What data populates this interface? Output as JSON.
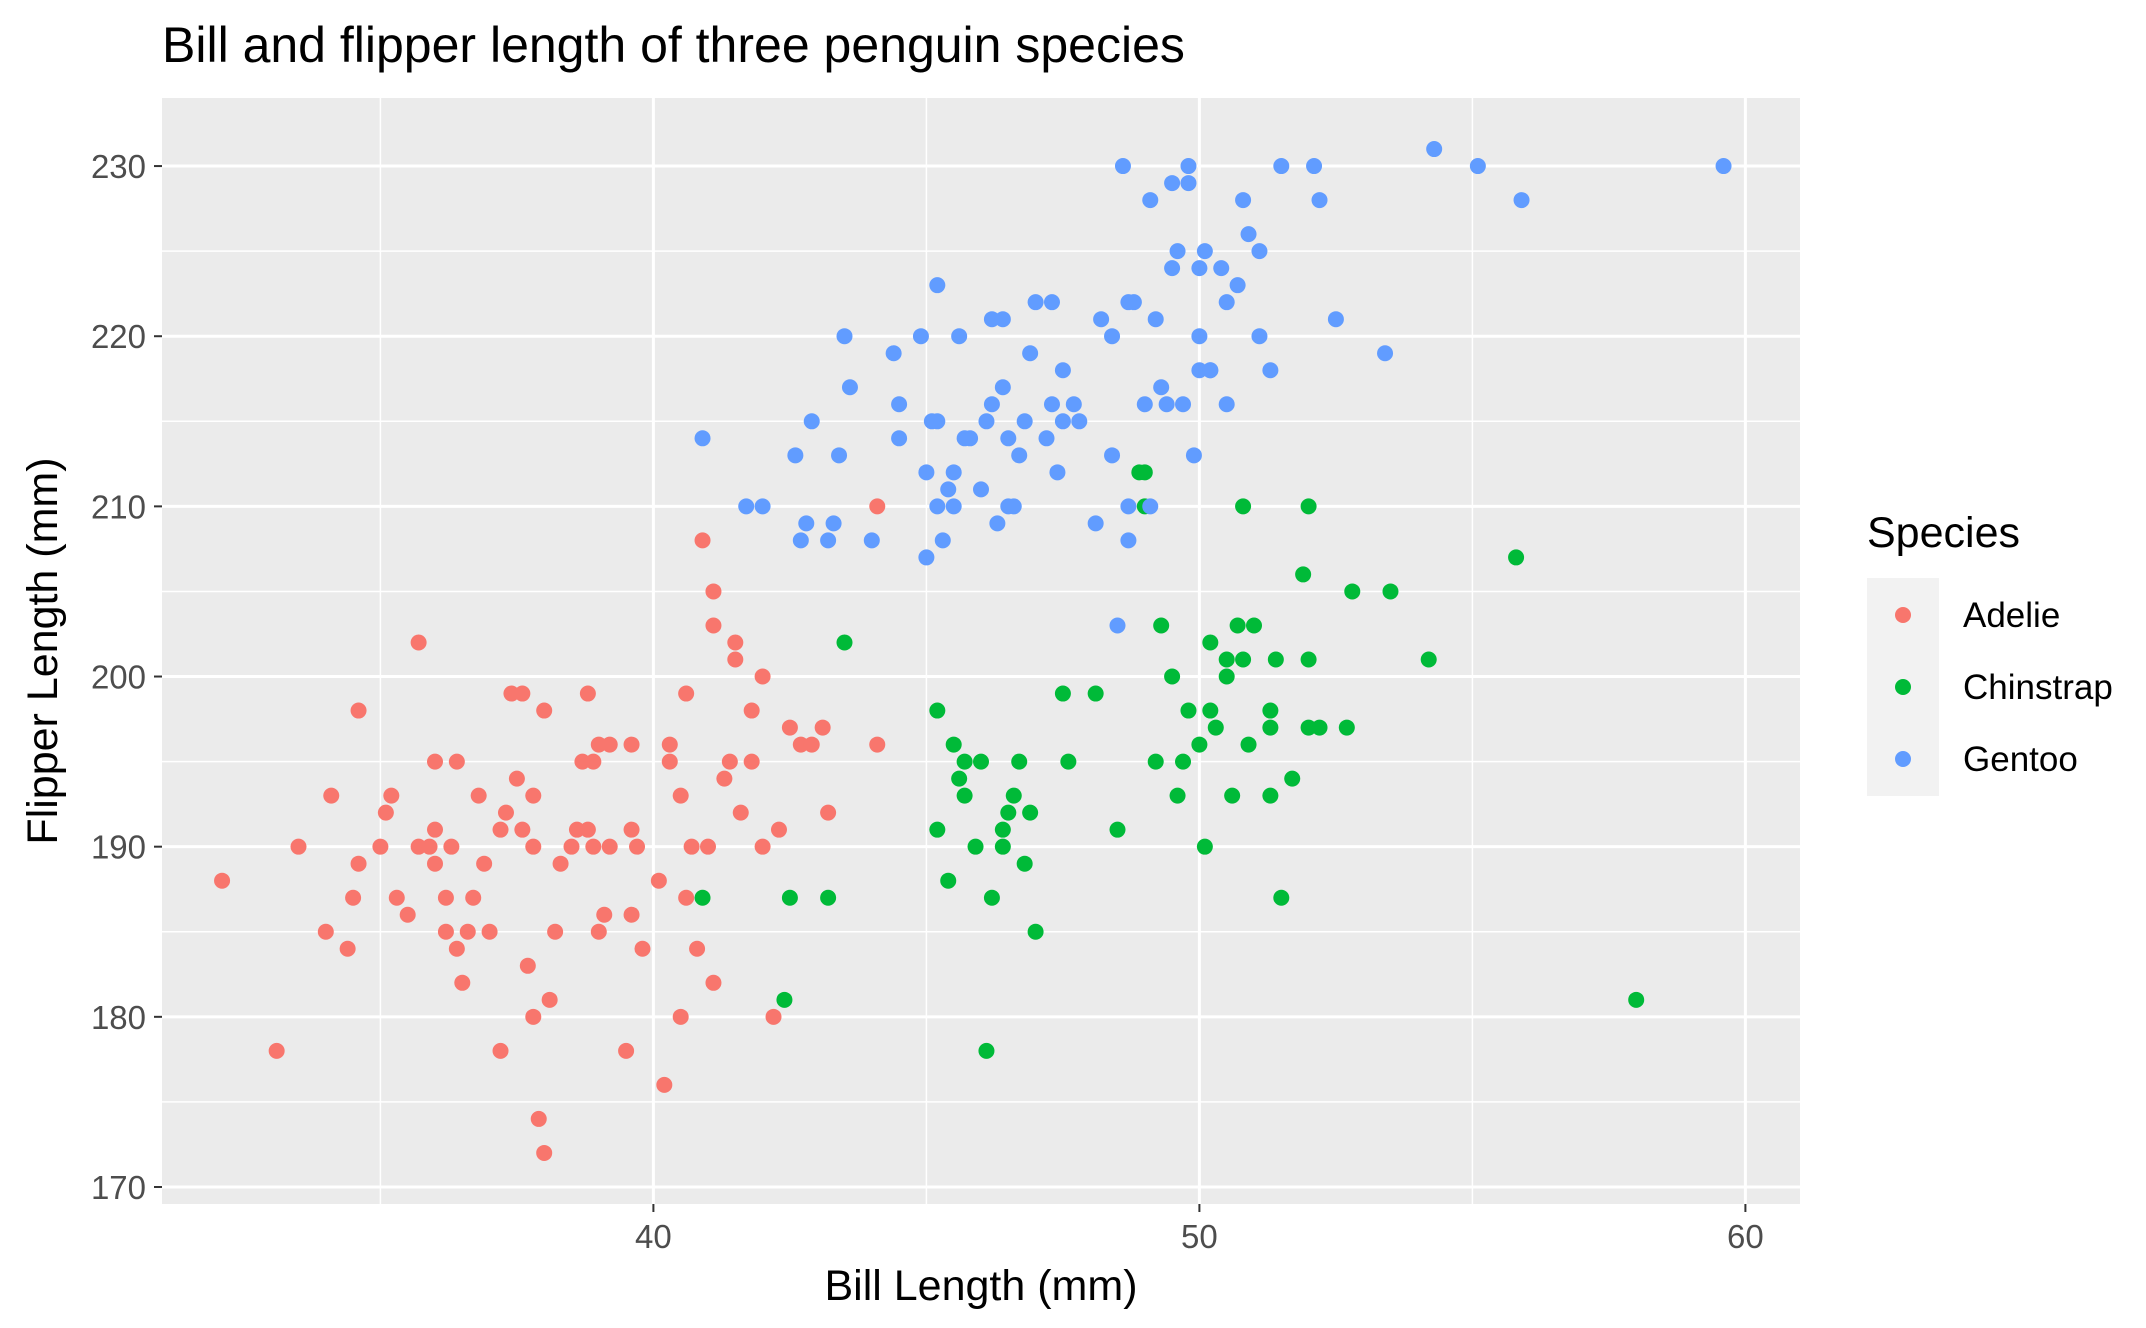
{
  "chart_data": {
    "type": "scatter",
    "title": "Bill and flipper length of three penguin species",
    "xlabel": "Bill Length (mm)",
    "ylabel": "Flipper Length (mm)",
    "xlim": [
      31,
      61
    ],
    "ylim": [
      169,
      234
    ],
    "x_ticks": [
      40,
      50,
      60
    ],
    "y_ticks": [
      170,
      180,
      190,
      200,
      210,
      220,
      230
    ],
    "grid": true,
    "legend": {
      "title": "Species",
      "position": "right"
    },
    "series": [
      {
        "name": "Adelie",
        "color": "#F8766D",
        "points": [
          [
            32.1,
            188
          ],
          [
            33.1,
            178
          ],
          [
            33.5,
            190
          ],
          [
            34.0,
            185
          ],
          [
            34.1,
            193
          ],
          [
            34.4,
            184
          ],
          [
            34.5,
            187
          ],
          [
            34.6,
            189
          ],
          [
            34.6,
            198
          ],
          [
            35.0,
            190
          ],
          [
            35.1,
            192
          ],
          [
            35.2,
            193
          ],
          [
            35.3,
            187
          ],
          [
            35.5,
            186
          ],
          [
            35.7,
            190
          ],
          [
            35.9,
            190
          ],
          [
            36.0,
            195
          ],
          [
            36.0,
            191
          ],
          [
            36.2,
            185
          ],
          [
            36.2,
            187
          ],
          [
            36.3,
            190
          ],
          [
            36.4,
            184
          ],
          [
            36.5,
            182
          ],
          [
            36.6,
            185
          ],
          [
            36.7,
            187
          ],
          [
            36.8,
            193
          ],
          [
            36.9,
            189
          ],
          [
            37.0,
            185
          ],
          [
            37.2,
            178
          ],
          [
            37.3,
            192
          ],
          [
            37.6,
            191
          ],
          [
            37.7,
            183
          ],
          [
            37.8,
            180
          ],
          [
            37.9,
            174
          ],
          [
            38.0,
            172
          ],
          [
            38.1,
            181
          ],
          [
            38.2,
            185
          ],
          [
            38.3,
            189
          ],
          [
            38.5,
            190
          ],
          [
            38.6,
            191
          ],
          [
            38.8,
            191
          ],
          [
            38.9,
            190
          ],
          [
            39.0,
            185
          ],
          [
            39.1,
            186
          ],
          [
            39.2,
            190
          ],
          [
            39.5,
            178
          ],
          [
            39.6,
            186
          ],
          [
            39.7,
            190
          ],
          [
            39.8,
            184
          ],
          [
            40.1,
            188
          ],
          [
            40.2,
            176
          ],
          [
            40.3,
            196
          ],
          [
            40.5,
            180
          ],
          [
            40.6,
            187
          ],
          [
            40.7,
            190
          ],
          [
            40.8,
            184
          ],
          [
            41.0,
            190
          ],
          [
            41.1,
            182
          ],
          [
            41.3,
            194
          ],
          [
            41.4,
            195
          ],
          [
            41.5,
            201
          ],
          [
            41.6,
            192
          ],
          [
            41.8,
            198
          ],
          [
            42.0,
            190
          ],
          [
            42.2,
            180
          ],
          [
            42.3,
            191
          ],
          [
            42.5,
            197
          ],
          [
            42.7,
            196
          ],
          [
            42.9,
            196
          ],
          [
            43.1,
            197
          ],
          [
            43.2,
            192
          ],
          [
            44.1,
            196
          ],
          [
            44.1,
            210
          ],
          [
            36.0,
            189
          ],
          [
            37.8,
            193
          ],
          [
            38.9,
            195
          ],
          [
            40.3,
            195
          ],
          [
            37.2,
            191
          ],
          [
            39.6,
            191
          ],
          [
            35.7,
            202
          ],
          [
            41.1,
            205
          ],
          [
            40.9,
            208
          ],
          [
            41.1,
            203
          ],
          [
            40.6,
            199
          ],
          [
            41.5,
            202
          ],
          [
            42.0,
            200
          ],
          [
            37.4,
            199
          ],
          [
            37.6,
            199
          ],
          [
            38.0,
            198
          ],
          [
            38.8,
            199
          ],
          [
            37.8,
            190
          ],
          [
            39.2,
            196
          ],
          [
            39.6,
            196
          ],
          [
            40.5,
            193
          ],
          [
            39.0,
            196
          ],
          [
            38.7,
            195
          ],
          [
            41.8,
            195
          ],
          [
            37.5,
            194
          ],
          [
            36.4,
            195
          ]
        ]
      },
      {
        "name": "Chinstrap",
        "color": "#00BA38",
        "points": [
          [
            40.9,
            187
          ],
          [
            42.4,
            181
          ],
          [
            42.5,
            187
          ],
          [
            43.2,
            187
          ],
          [
            43.5,
            202
          ],
          [
            45.2,
            198
          ],
          [
            45.2,
            191
          ],
          [
            45.4,
            188
          ],
          [
            45.5,
            196
          ],
          [
            45.6,
            194
          ],
          [
            45.7,
            195
          ],
          [
            45.7,
            193
          ],
          [
            45.9,
            190
          ],
          [
            46.0,
            195
          ],
          [
            46.1,
            178
          ],
          [
            46.2,
            187
          ],
          [
            46.4,
            190
          ],
          [
            46.4,
            191
          ],
          [
            46.5,
            192
          ],
          [
            46.6,
            193
          ],
          [
            46.7,
            195
          ],
          [
            46.8,
            189
          ],
          [
            46.9,
            192
          ],
          [
            47.0,
            185
          ],
          [
            47.5,
            199
          ],
          [
            47.6,
            195
          ],
          [
            48.1,
            199
          ],
          [
            48.5,
            191
          ],
          [
            49.0,
            210
          ],
          [
            49.0,
            212
          ],
          [
            49.2,
            195
          ],
          [
            49.3,
            203
          ],
          [
            49.5,
            200
          ],
          [
            49.6,
            193
          ],
          [
            49.7,
            195
          ],
          [
            49.8,
            198
          ],
          [
            50.0,
            196
          ],
          [
            50.1,
            190
          ],
          [
            50.2,
            198
          ],
          [
            50.3,
            197
          ],
          [
            50.5,
            200
          ],
          [
            50.6,
            193
          ],
          [
            50.7,
            203
          ],
          [
            50.8,
            210
          ],
          [
            50.9,
            196
          ],
          [
            51.0,
            203
          ],
          [
            51.3,
            193
          ],
          [
            51.4,
            201
          ],
          [
            51.5,
            187
          ],
          [
            51.7,
            194
          ],
          [
            51.9,
            206
          ],
          [
            52.0,
            210
          ],
          [
            52.2,
            197
          ],
          [
            52.7,
            197
          ],
          [
            52.8,
            205
          ],
          [
            53.5,
            205
          ],
          [
            54.2,
            201
          ],
          [
            55.8,
            207
          ],
          [
            58.0,
            181
          ],
          [
            50.2,
            202
          ],
          [
            50.5,
            201
          ],
          [
            52.0,
            201
          ],
          [
            51.3,
            197
          ],
          [
            51.3,
            198
          ],
          [
            52.0,
            197
          ],
          [
            50.8,
            201
          ],
          [
            48.9,
            212
          ]
        ]
      },
      {
        "name": "Gentoo",
        "color": "#619CFF",
        "points": [
          [
            40.9,
            214
          ],
          [
            41.7,
            210
          ],
          [
            42.0,
            210
          ],
          [
            42.6,
            213
          ],
          [
            42.7,
            208
          ],
          [
            42.8,
            209
          ],
          [
            42.9,
            215
          ],
          [
            43.2,
            208
          ],
          [
            43.3,
            209
          ],
          [
            43.4,
            213
          ],
          [
            43.5,
            220
          ],
          [
            43.6,
            217
          ],
          [
            44.0,
            208
          ],
          [
            44.4,
            219
          ],
          [
            44.5,
            216
          ],
          [
            44.9,
            220
          ],
          [
            45.0,
            207
          ],
          [
            45.1,
            215
          ],
          [
            45.2,
            210
          ],
          [
            45.3,
            208
          ],
          [
            45.4,
            211
          ],
          [
            45.5,
            210
          ],
          [
            45.8,
            214
          ],
          [
            46.1,
            215
          ],
          [
            46.2,
            221
          ],
          [
            46.3,
            209
          ],
          [
            46.4,
            217
          ],
          [
            46.5,
            210
          ],
          [
            46.6,
            210
          ],
          [
            46.8,
            215
          ],
          [
            46.9,
            219
          ],
          [
            47.0,
            222
          ],
          [
            47.2,
            214
          ],
          [
            47.3,
            216
          ],
          [
            47.4,
            212
          ],
          [
            47.5,
            218
          ],
          [
            47.7,
            216
          ],
          [
            48.1,
            209
          ],
          [
            48.2,
            221
          ],
          [
            48.4,
            213
          ],
          [
            48.5,
            203
          ],
          [
            48.6,
            230
          ],
          [
            48.7,
            208
          ],
          [
            48.8,
            222
          ],
          [
            49.0,
            216
          ],
          [
            49.1,
            228
          ],
          [
            49.2,
            221
          ],
          [
            49.3,
            217
          ],
          [
            49.4,
            216
          ],
          [
            49.5,
            224
          ],
          [
            49.6,
            225
          ],
          [
            49.8,
            229
          ],
          [
            49.9,
            213
          ],
          [
            50.0,
            220
          ],
          [
            50.1,
            225
          ],
          [
            50.2,
            218
          ],
          [
            50.4,
            224
          ],
          [
            50.5,
            222
          ],
          [
            50.7,
            223
          ],
          [
            50.8,
            228
          ],
          [
            51.1,
            220
          ],
          [
            51.3,
            218
          ],
          [
            51.5,
            230
          ],
          [
            52.1,
            230
          ],
          [
            52.2,
            228
          ],
          [
            52.5,
            221
          ],
          [
            53.4,
            219
          ],
          [
            54.3,
            231
          ],
          [
            55.1,
            230
          ],
          [
            55.9,
            228
          ],
          [
            59.6,
            230
          ],
          [
            44.5,
            214
          ],
          [
            45.0,
            212
          ],
          [
            45.2,
            215
          ],
          [
            45.5,
            212
          ],
          [
            45.7,
            214
          ],
          [
            46.0,
            211
          ],
          [
            46.2,
            216
          ],
          [
            46.5,
            214
          ],
          [
            46.7,
            213
          ],
          [
            47.5,
            215
          ],
          [
            47.8,
            215
          ],
          [
            48.4,
            220
          ],
          [
            48.7,
            222
          ],
          [
            49.1,
            210
          ],
          [
            49.5,
            229
          ],
          [
            49.8,
            230
          ],
          [
            50.0,
            224
          ],
          [
            50.5,
            216
          ],
          [
            50.9,
            226
          ],
          [
            51.1,
            225
          ],
          [
            45.2,
            223
          ],
          [
            45.6,
            220
          ],
          [
            46.4,
            221
          ],
          [
            47.3,
            222
          ],
          [
            48.7,
            210
          ],
          [
            49.7,
            216
          ],
          [
            50.0,
            218
          ],
          [
            50.2,
            218
          ]
        ]
      }
    ]
  }
}
